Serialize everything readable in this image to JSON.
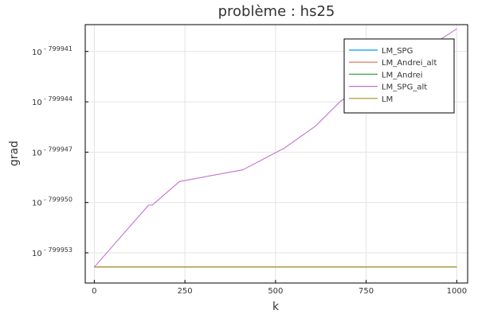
{
  "chart_data": {
    "type": "line",
    "title": "problème : hs25",
    "xlabel": "k",
    "ylabel": "grad",
    "x_ticks": [
      0,
      250,
      500,
      750,
      1000
    ],
    "y_ticks": [
      {
        "base": "10",
        "exponent": "- 799941",
        "value": -799941
      },
      {
        "base": "10",
        "exponent": "- 799944",
        "value": -799944
      },
      {
        "base": "10",
        "exponent": "- 799947",
        "value": -799947
      },
      {
        "base": "10",
        "exponent": "- 799950",
        "value": -799950
      },
      {
        "base": "10",
        "exponent": "- 799953",
        "value": -799953
      }
    ],
    "xlim": [
      -25,
      1030
    ],
    "ylim": [
      -799954.8,
      -799939.4
    ],
    "yscale": "log10 (values are exponents of 10)",
    "legend_position": "top-right",
    "grid": true,
    "series": [
      {
        "name": "LM_SPG",
        "color": "#009af9",
        "x": [
          0,
          1000
        ],
        "y": [
          -799953.85,
          -799953.85
        ]
      },
      {
        "name": "LM_Andrei_alt",
        "color": "#e26f46",
        "x": [
          0,
          1000
        ],
        "y": [
          -799953.85,
          -799953.85
        ]
      },
      {
        "name": "LM_Andrei",
        "color": "#3da44d",
        "x": [
          0,
          1000
        ],
        "y": [
          -799953.85,
          -799953.85
        ]
      },
      {
        "name": "LM_SPG_alt",
        "color": "#c271d2",
        "x": [
          0,
          150,
          160,
          235,
          410,
          525,
          610,
          680,
          750,
          850,
          1000
        ],
        "y": [
          -799953.85,
          -799950.15,
          -799950.15,
          -799948.75,
          -799948.05,
          -799946.75,
          -799945.45,
          -799943.95,
          -799943.05,
          -799941.75,
          -799939.65
        ]
      },
      {
        "name": "LM",
        "color": "#ac8d18",
        "x": [
          0,
          1000
        ],
        "y": [
          -799953.85,
          -799953.85
        ]
      }
    ]
  }
}
